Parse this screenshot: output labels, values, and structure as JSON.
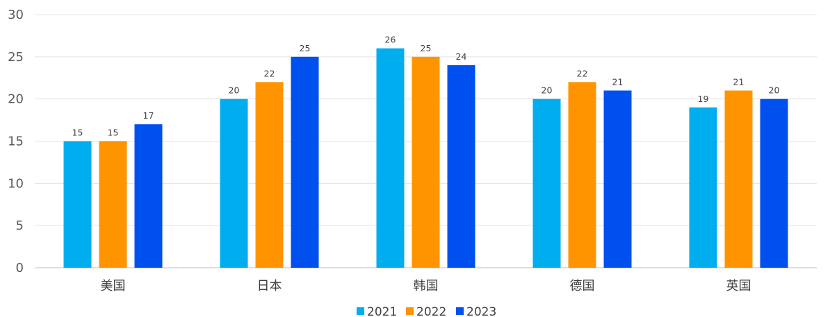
{
  "chart_data": {
    "type": "bar",
    "title": "",
    "xlabel": "",
    "ylabel": "",
    "ylim": [
      0,
      30
    ],
    "yticks": [
      0,
      5,
      10,
      15,
      20,
      25,
      30
    ],
    "grid": true,
    "legend_position": "bottom",
    "categories": [
      "美国",
      "日本",
      "韩国",
      "德国",
      "英国"
    ],
    "series": [
      {
        "name": "2021",
        "color": "#00AEEF",
        "values": [
          15,
          20,
          26,
          20,
          19
        ]
      },
      {
        "name": "2022",
        "color": "#FF9400",
        "values": [
          15,
          22,
          25,
          22,
          21
        ]
      },
      {
        "name": "2023",
        "color": "#0050F0",
        "values": [
          17,
          25,
          24,
          21,
          20
        ]
      }
    ]
  }
}
